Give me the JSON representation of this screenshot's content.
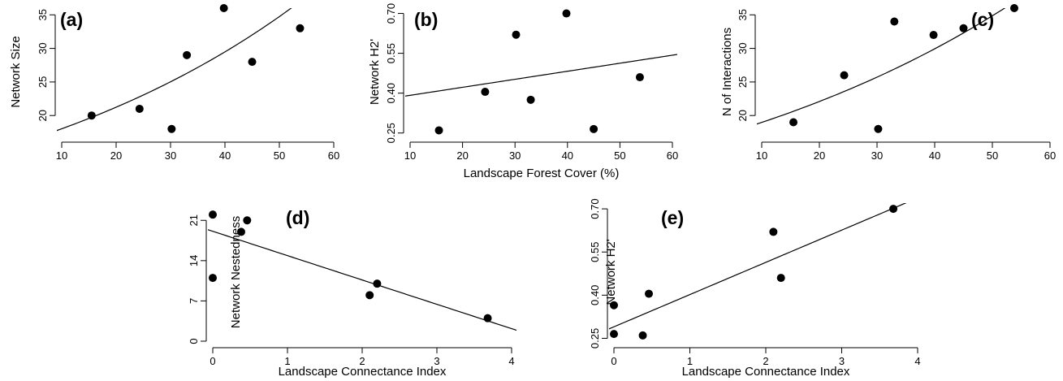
{
  "colors": {
    "points": "#000000",
    "lines": "#000000",
    "background": "#ffffff"
  },
  "chart_data": [
    {
      "id": "a",
      "type": "scatter",
      "panel_label": "(a)",
      "xlabel": "",
      "ylabel": "Network Size",
      "xlim": [
        10,
        60
      ],
      "ylim": [
        17,
        36
      ],
      "xticks": [
        10,
        20,
        30,
        40,
        50,
        60
      ],
      "yticks": [
        20,
        25,
        30,
        35
      ],
      "x": [
        15.5,
        24.3,
        30.2,
        33.0,
        39.8,
        45.0,
        53.8
      ],
      "y": [
        20,
        21,
        18,
        29,
        36,
        28,
        33
      ],
      "fit": {
        "kind": "exponential",
        "a": 15.3,
        "b": 0.0164
      }
    },
    {
      "id": "b",
      "type": "scatter",
      "panel_label": "(b)",
      "xlabel": "Landscape Forest Cover (%)",
      "ylabel": "Network H2'",
      "xlim": [
        10,
        60
      ],
      "ylim": [
        0.24,
        0.72
      ],
      "xticks": [
        10,
        20,
        30,
        40,
        50,
        60
      ],
      "yticks": [
        "0.25",
        "0.40",
        "0.55",
        "0.70"
      ],
      "x": [
        15.5,
        24.3,
        30.2,
        33.0,
        39.8,
        45.0,
        53.8
      ],
      "y": [
        0.26,
        0.405,
        0.62,
        0.375,
        0.7,
        0.265,
        0.46
      ],
      "fit": {
        "kind": "linear",
        "a": 0.3616,
        "b": 0.00302
      }
    },
    {
      "id": "c",
      "type": "scatter",
      "panel_label": "(c)",
      "xlabel": "",
      "ylabel": "N of Interactions",
      "xlim": [
        10,
        60
      ],
      "ylim": [
        17,
        36
      ],
      "xticks": [
        10,
        20,
        30,
        40,
        50,
        60
      ],
      "yticks": [
        20,
        25,
        30,
        35
      ],
      "x": [
        15.5,
        24.3,
        30.2,
        33.0,
        39.8,
        45.0,
        53.8
      ],
      "y": [
        19,
        26,
        18,
        34,
        32,
        33,
        36
      ],
      "fit": {
        "kind": "exponential",
        "a": 16.3,
        "b": 0.0152
      }
    },
    {
      "id": "d",
      "type": "scatter",
      "panel_label": "(d)",
      "xlabel": "Landscape Connectance Index",
      "ylabel": "Network Nestedness",
      "xlim": [
        0,
        4
      ],
      "ylim": [
        0,
        24
      ],
      "xticks": [
        0,
        1,
        2,
        3,
        4
      ],
      "yticks": [
        0,
        7,
        14,
        21
      ],
      "x": [
        0.0,
        0.0,
        0.38,
        0.46,
        2.1,
        2.2,
        3.68
      ],
      "y": [
        22,
        11,
        19,
        21,
        8,
        10,
        4
      ],
      "fit": {
        "kind": "linear",
        "a": 19.1,
        "b": -4.23
      }
    },
    {
      "id": "e",
      "type": "scatter",
      "panel_label": "(e)",
      "xlabel": "Landscape Connectance Index",
      "ylabel": "Network H2'",
      "xlim": [
        0,
        4
      ],
      "ylim": [
        0.24,
        0.72
      ],
      "xticks": [
        0,
        1,
        2,
        3,
        4
      ],
      "yticks": [
        "0.25",
        "0.40",
        "0.55",
        "0.70"
      ],
      "x": [
        0.0,
        0.0,
        0.38,
        0.46,
        2.1,
        2.2,
        3.68
      ],
      "y": [
        0.365,
        0.265,
        0.26,
        0.405,
        0.62,
        0.46,
        0.7
      ],
      "fit": {
        "kind": "linear",
        "a": 0.29,
        "b": 0.112
      }
    }
  ]
}
